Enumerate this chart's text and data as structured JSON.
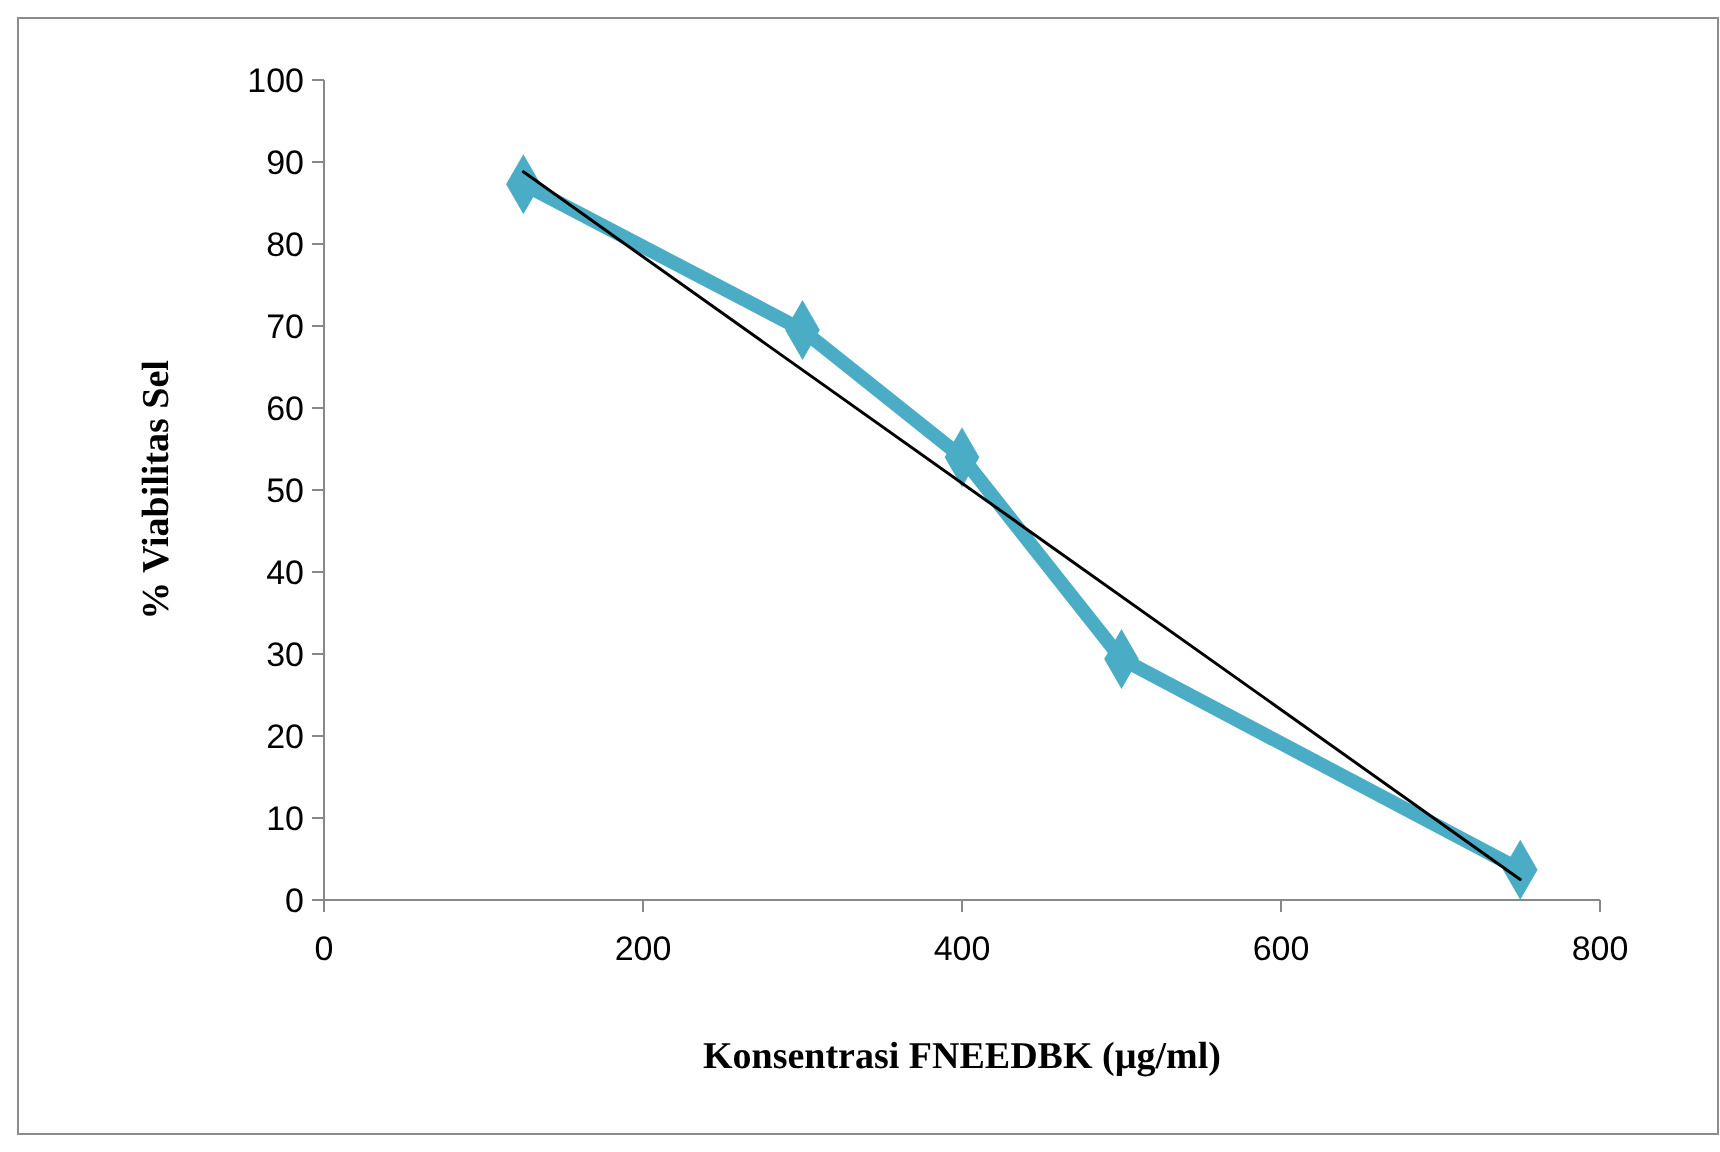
{
  "chart_data": {
    "type": "line",
    "xlabel": "Konsentrasi FNEEDBK (µg/ml)",
    "ylabel": "% Viabilitas Sel",
    "xlim": [
      0,
      800
    ],
    "xticks": [
      0,
      200,
      400,
      600,
      800
    ],
    "ylim": [
      0,
      100
    ],
    "yticks": [
      0,
      10,
      20,
      30,
      40,
      50,
      60,
      70,
      80,
      90,
      100
    ],
    "grid": false,
    "series": [
      {
        "color": "#4bacc6",
        "marker": "diamond",
        "x": [
          125,
          300,
          400,
          500,
          750
        ],
        "values": [
          87.3,
          69.5,
          54,
          29.4,
          3.7
        ]
      },
      {
        "color": "#000000",
        "marker": "none",
        "x": [
          125,
          750
        ],
        "values": [
          88.8,
          2.5
        ]
      }
    ]
  }
}
